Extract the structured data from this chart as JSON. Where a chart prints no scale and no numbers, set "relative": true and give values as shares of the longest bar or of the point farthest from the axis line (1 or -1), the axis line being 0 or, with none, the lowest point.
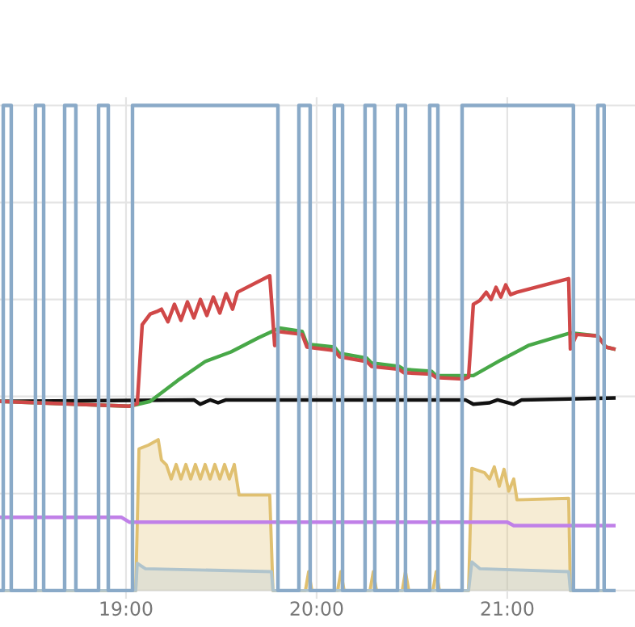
{
  "chart_data": {
    "type": "line",
    "relative": true,
    "grid": true,
    "tick_labels": "x",
    "xlim": [
      18.339,
      21.67
    ],
    "xticks": [
      {
        "value": 19,
        "label": "19:00"
      },
      {
        "value": 20,
        "label": "20:00"
      },
      {
        "value": 21,
        "label": "21:00"
      }
    ],
    "series": [
      {
        "type": "area",
        "color": "#e0c070",
        "x": [
          18.339,
          19.051,
          19.068,
          19.119,
          19.169,
          19.186,
          19.212,
          19.237,
          19.263,
          19.288,
          19.314,
          19.339,
          19.364,
          19.39,
          19.415,
          19.441,
          19.466,
          19.492,
          19.517,
          19.542,
          19.568,
          19.593,
          19.754,
          19.771,
          19.941,
          19.958,
          19.975,
          20.11,
          20.127,
          20.144,
          20.28,
          20.297,
          20.314,
          20.449,
          20.466,
          20.483,
          20.61,
          20.627,
          20.644,
          20.797,
          20.814,
          20.881,
          20.907,
          20.932,
          20.958,
          20.983,
          21.008,
          21.034,
          21.051,
          21.322,
          21.331,
          21.559
        ],
        "values": [
          0,
          0,
          0.292,
          0.3,
          0.311,
          0.269,
          0.259,
          0.23,
          0.26,
          0.23,
          0.26,
          0.23,
          0.26,
          0.23,
          0.26,
          0.23,
          0.26,
          0.23,
          0.26,
          0.23,
          0.26,
          0.197,
          0.197,
          0,
          0,
          0.039,
          0,
          0,
          0.039,
          0,
          0,
          0.039,
          0,
          0,
          0.039,
          0,
          0,
          0.039,
          0,
          0,
          0.252,
          0.243,
          0.23,
          0.255,
          0.215,
          0.25,
          0.205,
          0.23,
          0.187,
          0.19,
          0,
          0
        ]
      },
      {
        "type": "area",
        "color": "#b0c4cc",
        "x": [
          18.339,
          19.051,
          19.059,
          19.102,
          19.763,
          19.771,
          20.797,
          20.814,
          20.856,
          21.322,
          21.331,
          21.559
        ],
        "values": [
          0,
          0,
          0.056,
          0.045,
          0.039,
          0,
          0,
          0.059,
          0.045,
          0.039,
          0,
          0
        ]
      },
      {
        "color": "#c080e8",
        "x": [
          18.339,
          18.975,
          19.017,
          21.0,
          21.034,
          21.559
        ],
        "values": [
          0.151,
          0.151,
          0.141,
          0.141,
          0.134,
          0.134
        ]
      },
      {
        "color": "#111111",
        "x": [
          18.339,
          19.356,
          19.39,
          19.441,
          19.483,
          19.525,
          20.78,
          20.822,
          20.907,
          20.949,
          21.034,
          21.076,
          21.559
        ],
        "values": [
          0.39,
          0.393,
          0.384,
          0.393,
          0.387,
          0.393,
          0.393,
          0.384,
          0.387,
          0.393,
          0.384,
          0.393,
          0.397
        ]
      },
      {
        "color": "#48a848",
        "x": [
          18.339,
          19.017,
          19.127,
          19.271,
          19.415,
          19.551,
          19.695,
          19.805,
          19.924,
          19.949,
          20.093,
          20.119,
          20.263,
          20.288,
          20.432,
          20.458,
          20.602,
          20.627,
          20.771,
          20.822,
          20.966,
          21.11,
          21.305,
          21.331,
          21.475,
          21.517,
          21.559
        ],
        "values": [
          0.39,
          0.38,
          0.39,
          0.433,
          0.472,
          0.492,
          0.521,
          0.541,
          0.534,
          0.508,
          0.502,
          0.489,
          0.479,
          0.469,
          0.462,
          0.456,
          0.452,
          0.443,
          0.443,
          0.443,
          0.475,
          0.505,
          0.528,
          0.531,
          0.525,
          0.502,
          0.498
        ]
      },
      {
        "color": "#d04848",
        "x": [
          18.339,
          19.017,
          19.059,
          19.085,
          19.127,
          19.161,
          19.186,
          19.22,
          19.254,
          19.288,
          19.322,
          19.356,
          19.39,
          19.424,
          19.458,
          19.492,
          19.525,
          19.559,
          19.585,
          19.754,
          19.78,
          19.797,
          19.924,
          19.949,
          20.093,
          20.119,
          20.263,
          20.288,
          20.432,
          20.458,
          20.602,
          20.627,
          20.771,
          20.797,
          20.822,
          20.856,
          20.89,
          20.915,
          20.941,
          20.966,
          20.992,
          21.017,
          21.051,
          21.322,
          21.331,
          21.364,
          21.475,
          21.517,
          21.559
        ],
        "values": [
          0.39,
          0.38,
          0.385,
          0.548,
          0.57,
          0.575,
          0.58,
          0.554,
          0.59,
          0.557,
          0.595,
          0.562,
          0.6,
          0.567,
          0.605,
          0.572,
          0.612,
          0.58,
          0.615,
          0.649,
          0.505,
          0.534,
          0.528,
          0.502,
          0.495,
          0.482,
          0.472,
          0.462,
          0.456,
          0.449,
          0.446,
          0.439,
          0.436,
          0.44,
          0.59,
          0.598,
          0.615,
          0.6,
          0.625,
          0.605,
          0.63,
          0.61,
          0.615,
          0.643,
          0.498,
          0.528,
          0.525,
          0.502,
          0.498
        ]
      },
      {
        "color": "#8aaac8",
        "x": [
          18.339,
          18.356,
          18.356,
          18.398,
          18.398,
          18.525,
          18.525,
          18.568,
          18.568,
          18.678,
          18.678,
          18.737,
          18.737,
          18.856,
          18.856,
          18.907,
          18.907,
          19.034,
          19.034,
          19.797,
          19.797,
          19.907,
          19.907,
          19.966,
          19.966,
          20.093,
          20.093,
          20.136,
          20.136,
          20.254,
          20.254,
          20.305,
          20.305,
          20.424,
          20.424,
          20.466,
          20.466,
          20.593,
          20.593,
          20.636,
          20.636,
          20.763,
          20.763,
          21.347,
          21.347,
          21.475,
          21.475,
          21.508,
          21.508,
          21.559
        ],
        "values": [
          0,
          0,
          1,
          1,
          0,
          0,
          1,
          1,
          0,
          0,
          1,
          1,
          0,
          0,
          1,
          1,
          0,
          0,
          1,
          1,
          0,
          0,
          1,
          1,
          0,
          0,
          1,
          1,
          0,
          0,
          1,
          1,
          0,
          0,
          1,
          1,
          0,
          0,
          1,
          1,
          0,
          0,
          1,
          1,
          0,
          0,
          1,
          1,
          0,
          0
        ]
      }
    ]
  }
}
